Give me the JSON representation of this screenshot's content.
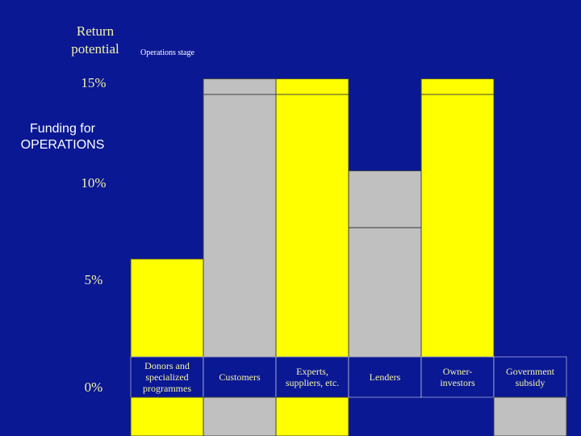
{
  "slide": {
    "heading_line1": "Return",
    "heading_line2": "potential",
    "stage_label": "Operations stage",
    "subtitle_line1": "Funding for",
    "subtitle_line2": "OPERATIONS"
  },
  "colors": {
    "background": "#0a1893",
    "yellow": "#ffff00",
    "gray": "#c0c0c0",
    "text": "#f3f4a8"
  },
  "chart_data": {
    "type": "bar",
    "y_ticks": [
      "0%",
      "5%",
      "10%",
      "15%"
    ],
    "y_tick_values": [
      0,
      5,
      10,
      15
    ],
    "ylim": [
      0,
      15
    ],
    "categories": [
      [
        "Donors and",
        "specialized",
        "programmes"
      ],
      [
        "Customers"
      ],
      [
        "Experts,",
        "suppliers, etc."
      ],
      [
        "Lenders"
      ],
      [
        "Owner-",
        "investors"
      ],
      [
        "Government",
        "subsidy"
      ]
    ],
    "series": [
      {
        "values": [
          5,
          13.4,
          13.4,
          6.6,
          13.4,
          0
        ]
      },
      {
        "values": [
          0,
          0.8,
          0.8,
          2.9,
          0.8,
          0
        ]
      }
    ],
    "bar_colors": [
      "yellow",
      "gray",
      "yellow",
      "gray",
      "yellow",
      "gray"
    ],
    "bottom_strip_colors": [
      "yellow",
      "gray",
      "yellow",
      null,
      null,
      "gray"
    ],
    "grid": false
  }
}
